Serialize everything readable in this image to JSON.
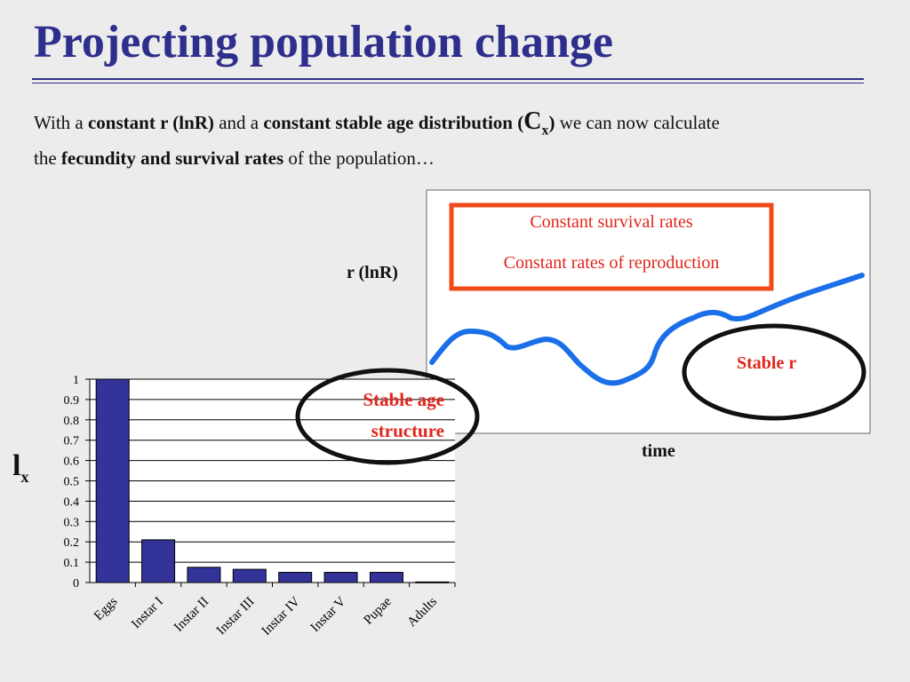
{
  "title": "Projecting population change",
  "intro": {
    "p1": "With a ",
    "b1": "constant r (lnR)",
    "p2": " and a ",
    "b2": "constant stable age distribution (",
    "cx_main": "C",
    "cx_sub": "x",
    "b3": ")",
    "p3": " we can now calculate",
    "p4": "the ",
    "b4": "fecundity and survival  rates",
    "p5": " of  the population…"
  },
  "right_panel": {
    "box_line1": "Constant survival rates",
    "box_line2": "Constant rates of  reproduction",
    "ylabel": "r (lnR)",
    "xlabel": "time",
    "circle_label": "Stable r"
  },
  "age_circle_line1": "Stable age",
  "age_circle_line2": "structure",
  "lx_main": "l",
  "lx_sub": "x",
  "colors": {
    "title": "#2e2e8c",
    "bar": "#33339a",
    "red": "#e0261c",
    "line": "#1a6fe8"
  },
  "chart_data": {
    "type": "bar",
    "categories": [
      "Eggs",
      "Instar I",
      "Instar II",
      "Instar III",
      "Instar IV",
      "Instar V",
      "Pupae",
      "Adults"
    ],
    "values": [
      1.0,
      0.21,
      0.075,
      0.065,
      0.05,
      0.05,
      0.05,
      0.003
    ],
    "yticks": [
      "0",
      "0.1",
      "0.2",
      "0.3",
      "0.4",
      "0.5",
      "0.6",
      "0.7",
      "0.8",
      "0.9",
      "1"
    ],
    "ylim": [
      0,
      1
    ],
    "ylabel": "lx",
    "grid": true
  }
}
